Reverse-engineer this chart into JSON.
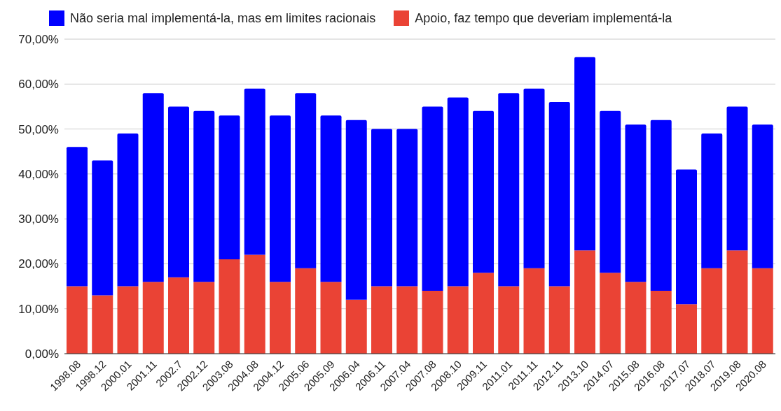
{
  "chart_data": {
    "type": "bar",
    "stacked": true,
    "legend": "top",
    "grid": "y",
    "categories": [
      "1998.08",
      "1998.12",
      "2000.01",
      "2001.11",
      "2002.7",
      "2002.12",
      "2003.08",
      "2004.08",
      "2004.12",
      "2005.06",
      "2005.09",
      "2006.04",
      "2006.11",
      "2007.04",
      "2007.08",
      "2008.10",
      "2009.11",
      "2011.01",
      "2011.11",
      "2012.11",
      "2013.10",
      "2014.07",
      "2015.08",
      "2016.08",
      "2017.07",
      "2018.07",
      "2019.08",
      "2020.08"
    ],
    "series": [
      {
        "name": "Apoio, faz tempo que deveriam implementá-la",
        "color": "#ea4335",
        "values": [
          15,
          13,
          15,
          16,
          17,
          16,
          21,
          22,
          16,
          19,
          16,
          12,
          15,
          15,
          14,
          15,
          18,
          15,
          19,
          15,
          23,
          18,
          16,
          14,
          11,
          19,
          23,
          19
        ]
      },
      {
        "name": "Não seria mal implementá-la, mas em limites racionais",
        "color": "#0000ff",
        "values": [
          31,
          30,
          34,
          42,
          38,
          38,
          32,
          37,
          37,
          39,
          37,
          40,
          35,
          35,
          41,
          42,
          36,
          43,
          40,
          41,
          43,
          36,
          35,
          38,
          30,
          30,
          32,
          32
        ]
      }
    ],
    "ylim": [
      0,
      70
    ],
    "yticks": [
      {
        "value": 0,
        "label": "0,00%"
      },
      {
        "value": 10,
        "label": "10,00%"
      },
      {
        "value": 20,
        "label": "20,00%"
      },
      {
        "value": 30,
        "label": "30,00%"
      },
      {
        "value": 40,
        "label": "40,00%"
      },
      {
        "value": 50,
        "label": "50,00%"
      },
      {
        "value": 60,
        "label": "60,00%"
      },
      {
        "value": 70,
        "label": "70,00%"
      }
    ]
  }
}
